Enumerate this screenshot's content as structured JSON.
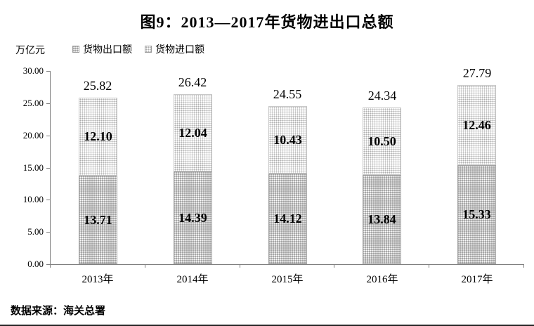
{
  "page": {
    "source_note": "数据来源：海关总署"
  },
  "chart_data": {
    "type": "bar",
    "stacked": true,
    "title": "图9：2013—2017年货物进出口总额",
    "unit_label": "万亿元",
    "categories": [
      "2013年",
      "2014年",
      "2015年",
      "2016年",
      "2017年"
    ],
    "series": [
      {
        "name": "货物出口额",
        "values": [
          13.71,
          14.39,
          14.12,
          13.84,
          15.33
        ],
        "pattern": "white-dots-on-gray",
        "color": "#a6a6a6"
      },
      {
        "name": "货物进口额",
        "values": [
          12.1,
          12.04,
          10.43,
          10.5,
          12.46
        ],
        "pattern": "gray-dots-on-white",
        "color": "#ffffff"
      }
    ],
    "totals": [
      25.82,
      26.42,
      24.55,
      24.34,
      27.79
    ],
    "ylim": [
      0,
      30
    ],
    "y_tick_step": 5,
    "y_ticks": [
      "0.00",
      "5.00",
      "10.00",
      "15.00",
      "20.00",
      "25.00",
      "30.00"
    ],
    "value_label_format": "0.00",
    "grid": false,
    "legend_position": "top-left",
    "axis_color": "#808080"
  }
}
